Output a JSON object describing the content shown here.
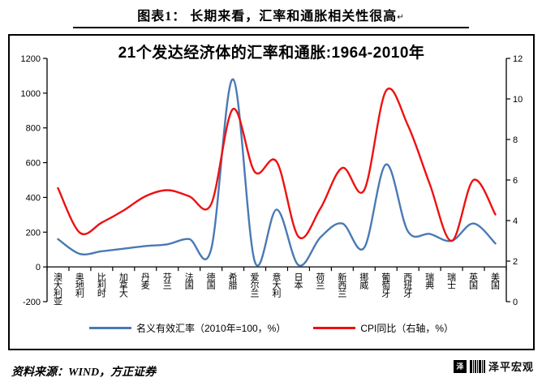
{
  "header": {
    "title": "图表1：  长期来看，汇率和通胀相关性很高",
    "paragraph_mark": "↵"
  },
  "chart_data": {
    "type": "line",
    "title": "21个发达经济体的汇率和通胀:1964-2010年",
    "categories": [
      "澳大利亚",
      "奥地利",
      "比利时",
      "加拿大",
      "丹麦",
      "芬兰",
      "法国",
      "德国",
      "希腊",
      "爱尔兰",
      "意大利",
      "日本",
      "荷兰",
      "新西兰",
      "挪威",
      "葡萄牙",
      "西班牙",
      "瑞典",
      "瑞士",
      "英国",
      "美国"
    ],
    "series": [
      {
        "name": "名义有效汇率（2010年=100，%）",
        "axis": "left",
        "color": "#4a79b5",
        "values": [
          160,
          75,
          90,
          105,
          120,
          130,
          160,
          100,
          1080,
          30,
          330,
          10,
          170,
          250,
          110,
          590,
          205,
          190,
          150,
          250,
          135
        ]
      },
      {
        "name": "CPI同比（右轴，%）",
        "axis": "right",
        "color": "#ee1111",
        "values": [
          5.6,
          3.4,
          3.9,
          4.5,
          5.2,
          5.5,
          5.2,
          4.8,
          9.5,
          6.4,
          6.9,
          3.2,
          4.6,
          6.6,
          5.5,
          10.4,
          8.7,
          5.8,
          3.0,
          6.0,
          4.3
        ]
      }
    ],
    "left_axis": {
      "min": -200,
      "max": 1200,
      "step": 200,
      "ticks": [
        -200,
        0,
        200,
        400,
        600,
        800,
        1000,
        1200
      ]
    },
    "right_axis": {
      "min": 0,
      "max": 12,
      "step": 2,
      "ticks": [
        0,
        2,
        4,
        6,
        8,
        10,
        12
      ]
    },
    "grid": false,
    "legend_position": "bottom"
  },
  "footer": {
    "source": "资料来源：WIND，方正证券",
    "watermark": "泽平宏观"
  }
}
